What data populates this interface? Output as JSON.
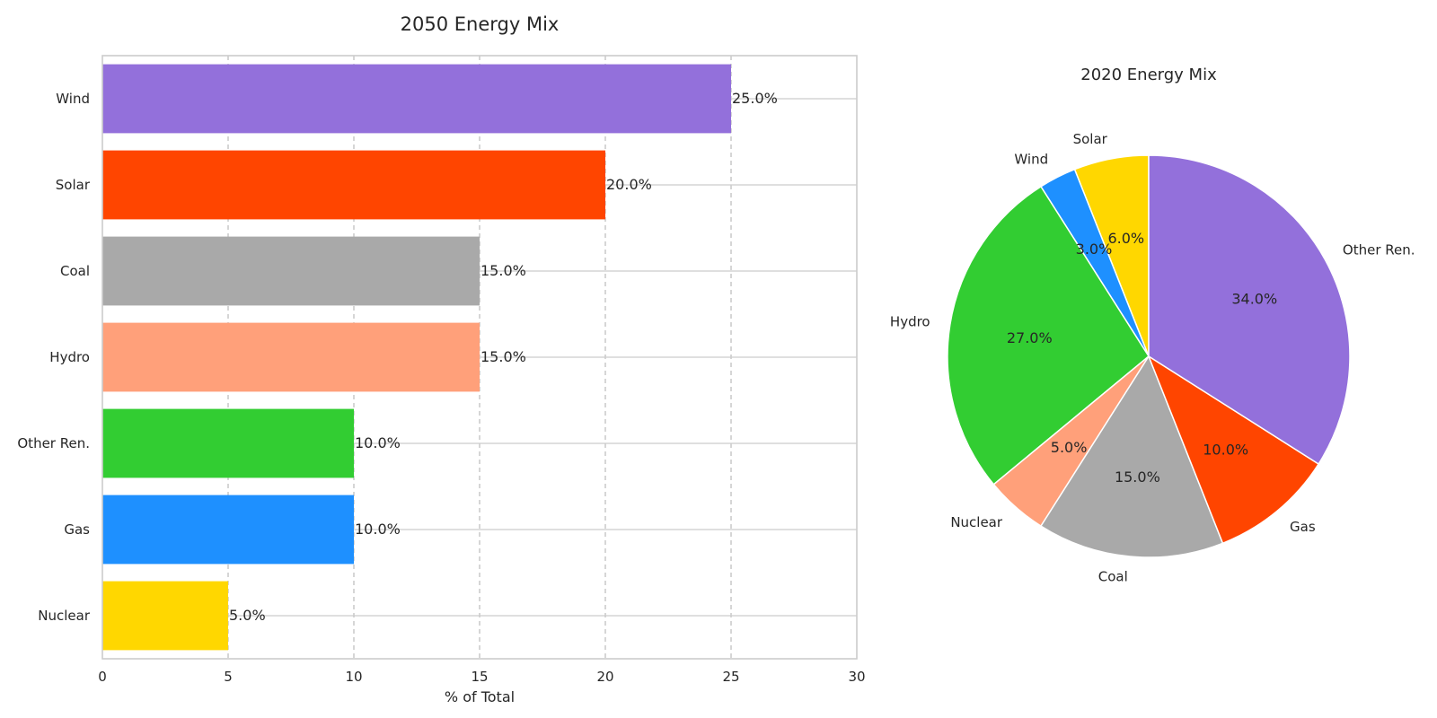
{
  "chart_data": [
    {
      "type": "bar",
      "orientation": "horizontal",
      "title": "2050 Energy Mix",
      "xlabel": "% of Total",
      "ylabel": "",
      "xlim": [
        0,
        30
      ],
      "xticks": [
        0,
        5,
        10,
        15,
        20,
        25,
        30
      ],
      "grid": true,
      "categories": [
        "Wind",
        "Solar",
        "Coal",
        "Hydro",
        "Other Ren.",
        "Gas",
        "Nuclear"
      ],
      "values": [
        25.0,
        20.0,
        15.0,
        15.0,
        10.0,
        10.0,
        5.0
      ],
      "data_labels": [
        "25.0%",
        "20.0%",
        "15.0%",
        "15.0%",
        "10.0%",
        "10.0%",
        "5.0%"
      ],
      "colors": [
        "#9370DB",
        "#FF4500",
        "#A9A9A9",
        "#FFA07A",
        "#32CD32",
        "#1E90FF",
        "#FFD700"
      ]
    },
    {
      "type": "pie",
      "title": "2020 Energy Mix",
      "start_angle": 90,
      "direction": "counterclockwise",
      "slices": [
        {
          "label": "Solar",
          "value": 6.0,
          "pct_label": "6.0%",
          "color": "#FFD700"
        },
        {
          "label": "Wind",
          "value": 3.0,
          "pct_label": "3.0%",
          "color": "#1E90FF"
        },
        {
          "label": "Hydro",
          "value": 27.0,
          "pct_label": "27.0%",
          "color": "#32CD32"
        },
        {
          "label": "Nuclear",
          "value": 5.0,
          "pct_label": "5.0%",
          "color": "#FFA07A"
        },
        {
          "label": "Coal",
          "value": 15.0,
          "pct_label": "15.0%",
          "color": "#A9A9A9"
        },
        {
          "label": "Gas",
          "value": 10.0,
          "pct_label": "10.0%",
          "color": "#FF4500"
        },
        {
          "label": "Other Ren.",
          "value": 34.0,
          "pct_label": "34.0%",
          "color": "#9370DB"
        }
      ]
    }
  ]
}
